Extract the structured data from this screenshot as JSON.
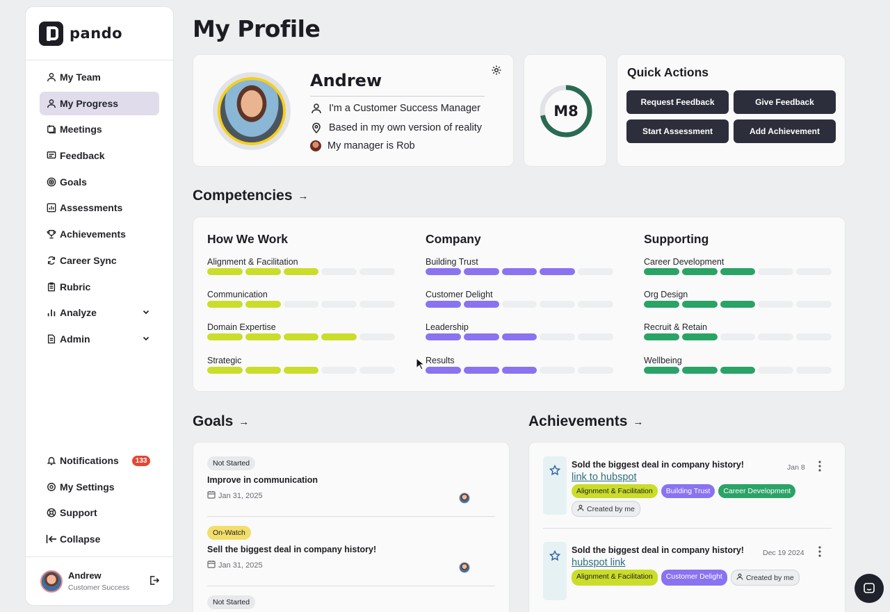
{
  "app": {
    "logo_text": "pando"
  },
  "sidebar": {
    "items": [
      {
        "label": "My Team",
        "icon": "user-icon"
      },
      {
        "label": "My Progress",
        "icon": "user-icon"
      },
      {
        "label": "Meetings",
        "icon": "meetings-icon"
      },
      {
        "label": "Feedback",
        "icon": "feedback-icon"
      },
      {
        "label": "Goals",
        "icon": "target-icon"
      },
      {
        "label": "Assessments",
        "icon": "chart-icon"
      },
      {
        "label": "Achievements",
        "icon": "trophy-icon"
      },
      {
        "label": "Career Sync",
        "icon": "sync-icon"
      },
      {
        "label": "Rubric",
        "icon": "clipboard-icon"
      },
      {
        "label": "Analyze",
        "icon": "bar-chart-icon"
      },
      {
        "label": "Admin",
        "icon": "document-icon"
      }
    ],
    "bottom": [
      {
        "label": "Notifications",
        "icon": "bell-icon",
        "badge": "133"
      },
      {
        "label": "My Settings",
        "icon": "gear-icon"
      },
      {
        "label": "Support",
        "icon": "lifebuoy-icon"
      },
      {
        "label": "Collapse",
        "icon": "collapse-icon"
      }
    ],
    "user": {
      "name": "Andrew",
      "role": "Customer Success"
    }
  },
  "page": {
    "title": "My Profile"
  },
  "profile": {
    "name": "Andrew",
    "role_line": "I'm a Customer Success Manager",
    "location_line": "Based in my own version of reality",
    "manager_line": "My manager is Rob"
  },
  "level": {
    "label": "M8",
    "progress": 0.72
  },
  "quick_actions": {
    "title": "Quick Actions",
    "buttons": [
      "Request Feedback",
      "Give Feedback",
      "Start Assessment",
      "Add Achievement"
    ]
  },
  "competencies": {
    "heading": "Competencies",
    "columns": [
      {
        "title": "How We Work",
        "color": "#cadd2a",
        "items": [
          {
            "label": "Alignment & Facilitation",
            "level": 3
          },
          {
            "label": "Communication",
            "level": 2
          },
          {
            "label": "Domain Expertise",
            "level": 4
          },
          {
            "label": "Strategic",
            "level": 3
          }
        ]
      },
      {
        "title": "Company",
        "color": "#8a73f0",
        "items": [
          {
            "label": "Building Trust",
            "level": 4
          },
          {
            "label": "Customer Delight",
            "level": 2
          },
          {
            "label": "Leadership",
            "level": 3
          },
          {
            "label": "Results",
            "level": 3
          }
        ]
      },
      {
        "title": "Supporting",
        "color": "#2aa366",
        "items": [
          {
            "label": "Career Development",
            "level": 3
          },
          {
            "label": "Org Design",
            "level": 3
          },
          {
            "label": "Recruit & Retain",
            "level": 2
          },
          {
            "label": "Wellbeing",
            "level": 3
          }
        ]
      }
    ],
    "max_level": 5
  },
  "goals": {
    "heading": "Goals",
    "items": [
      {
        "status": "Not Started",
        "status_color": "#e8e9ec",
        "title": "Improve in communication",
        "date": "Jan 31, 2025"
      },
      {
        "status": "On-Watch",
        "status_color": "#f3de6c",
        "title": "Sell the biggest deal in company history!",
        "date": "Jan 31, 2025"
      },
      {
        "status": "Not Started",
        "status_color": "#e8e9ec",
        "title": "",
        "date": ""
      }
    ]
  },
  "achievements": {
    "heading": "Achievements",
    "items": [
      {
        "title": "Sold the biggest deal in company history!",
        "link": "link to hubspot",
        "date": "Jan 8",
        "tags": [
          {
            "label": "Alignment & Facilitation",
            "kind": "lime"
          },
          {
            "label": "Building Trust",
            "kind": "purple"
          },
          {
            "label": "Career Development",
            "kind": "green"
          }
        ],
        "created": "Created by me"
      },
      {
        "title": "Sold the biggest deal in company history!",
        "link": "hubspot link",
        "date": "Dec 19 2024",
        "tags": [
          {
            "label": "Alignment & Facilitation",
            "kind": "lime"
          },
          {
            "label": "Customer Delight",
            "kind": "purple"
          }
        ],
        "created": "Created by me"
      }
    ]
  }
}
